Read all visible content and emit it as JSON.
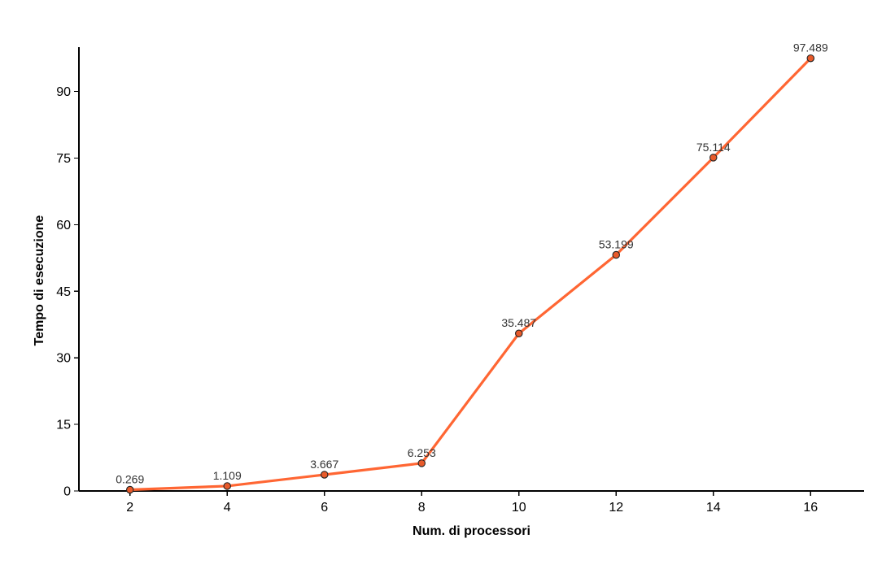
{
  "chart_data": {
    "type": "line",
    "title": "",
    "xlabel": "Num. di processori",
    "ylabel": "Tempo di esecuzione",
    "x": [
      2,
      4,
      6,
      8,
      10,
      12,
      14,
      16
    ],
    "series": [
      {
        "values": [
          0.269,
          1.109,
          3.667,
          6.253,
          35.487,
          53.199,
          75.114,
          97.489
        ],
        "labels": [
          "0.269",
          "1.109",
          "3.667",
          "6.253",
          "35.487",
          "53.199",
          "75.114",
          "97.489"
        ],
        "color": "#ff6633",
        "marker_color": "#e85a2a"
      }
    ],
    "xticks": [
      "2",
      "4",
      "6",
      "8",
      "10",
      "12",
      "14",
      "16"
    ],
    "yticks": [
      "0",
      "15",
      "30",
      "45",
      "60",
      "75",
      "90"
    ],
    "xlim": [
      0.95,
      17.1
    ],
    "ylim": [
      0,
      100
    ],
    "grid": false,
    "legend": "none"
  }
}
